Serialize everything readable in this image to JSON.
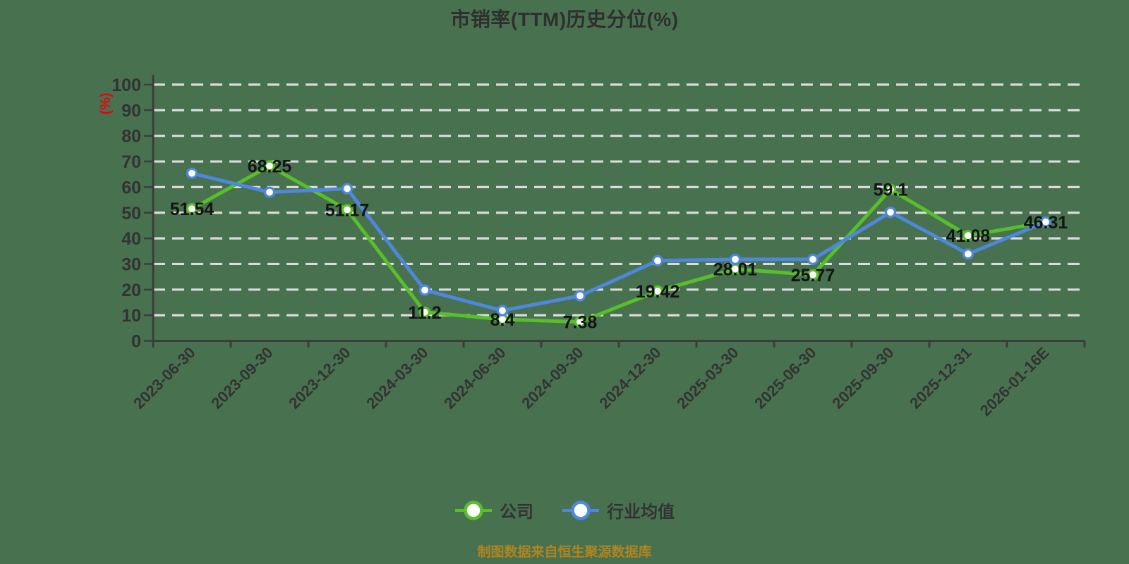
{
  "chart_data": {
    "type": "line",
    "title": "市销率(TTM)历史分位(%)",
    "ylabel": "(%)",
    "xlabel": "",
    "categories": [
      "2023-06-30",
      "2023-09-30",
      "2023-12-30",
      "2024-03-30",
      "2024-06-30",
      "2024-09-30",
      "2024-12-30",
      "2025-03-30",
      "2025-06-30",
      "2025-09-30",
      "2025-12-31",
      "2026-01-16E"
    ],
    "series": [
      {
        "name": "公司",
        "color": "#58BF2A",
        "values": [
          51.54,
          68.25,
          51.17,
          11.2,
          8.4,
          7.38,
          19.42,
          28.01,
          25.77,
          59.1,
          41.08,
          46.31
        ],
        "point_labels": true
      },
      {
        "name": "行业均值",
        "color": "#4E87DC",
        "values": [
          65.4,
          58.0,
          59.4,
          19.8,
          11.8,
          17.6,
          31.3,
          31.8,
          31.8,
          50.2,
          33.9,
          46.4
        ],
        "point_labels": false
      }
    ],
    "ylim": [
      0,
      100
    ],
    "y_ticks": [
      0,
      10,
      20,
      30,
      40,
      50,
      60,
      70,
      80,
      90,
      100
    ],
    "grid": "horizontal dashed",
    "legend_position": "bottom",
    "marker": "white-filled circle",
    "colors": {
      "background": "#48724F",
      "grid": "#DBDBDB",
      "axis": "#3C3C3C",
      "tick_text": "#333333",
      "data_label": "#141414",
      "title": "#2F2F2F",
      "unit": "#E30613",
      "footer": "#B08420"
    }
  },
  "footer_note": "制图数据来自恒生聚源数据库"
}
